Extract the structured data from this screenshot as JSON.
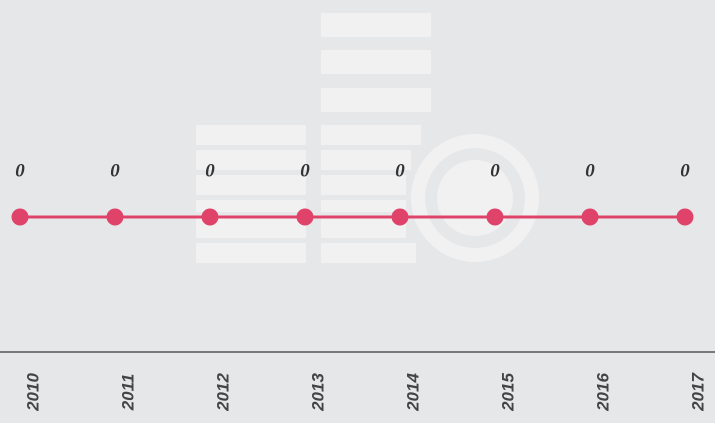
{
  "chart_data": {
    "type": "line",
    "categories": [
      "2010",
      "2011",
      "2012",
      "2013",
      "2014",
      "2015",
      "2016",
      "2017"
    ],
    "values": [
      0,
      0,
      0,
      0,
      0,
      0,
      0,
      0
    ],
    "color": "#e0436a"
  }
}
